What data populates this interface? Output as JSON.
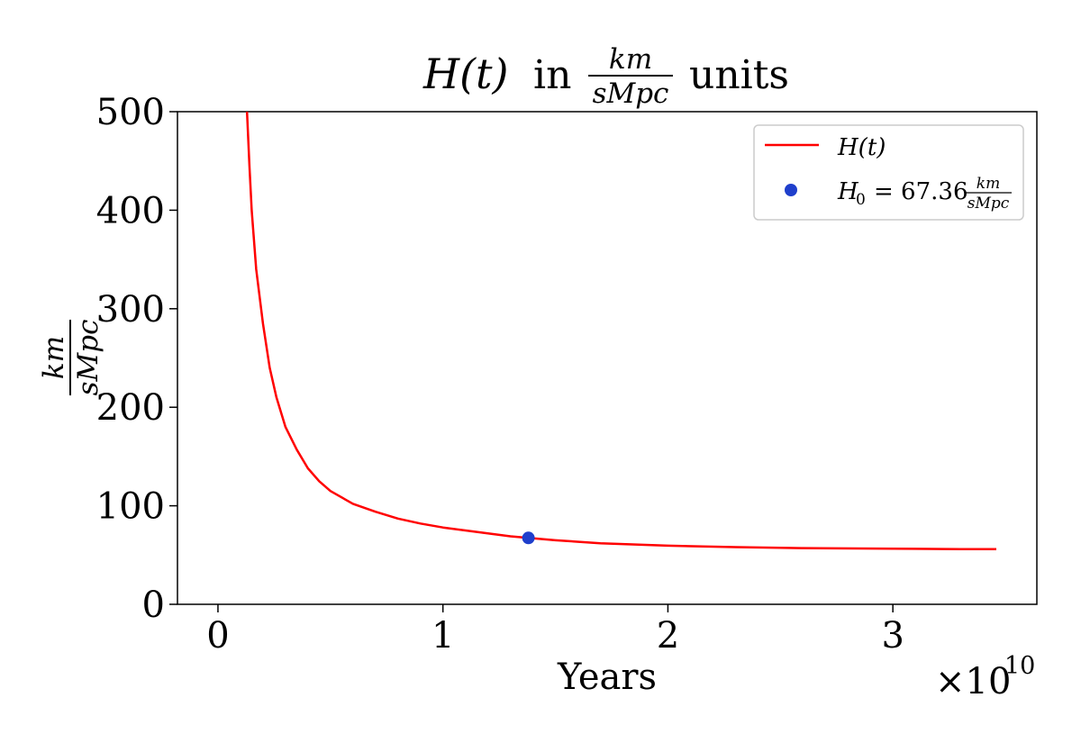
{
  "chart_data": {
    "type": "line",
    "title": {
      "prefix": "H(t)",
      "middle": "in",
      "frac_num": "km",
      "frac_den": "sMpc",
      "suffix": "units"
    },
    "xlabel": "Years",
    "x_multiplier": "×10",
    "x_multiplier_exp": "10",
    "ylabel": {
      "num": "km",
      "den": "sMpc"
    },
    "xlim": [
      -0.18,
      3.64
    ],
    "ylim": [
      0,
      500
    ],
    "x_ticks": [
      0,
      1,
      2,
      3
    ],
    "x_tick_labels": [
      "0",
      "1",
      "2",
      "3"
    ],
    "y_ticks": [
      0,
      100,
      200,
      300,
      400,
      500
    ],
    "y_tick_labels": [
      "0",
      "100",
      "200",
      "300",
      "400",
      "500"
    ],
    "grid": false,
    "legend_position": "top-right",
    "series": [
      {
        "name": "H(t)",
        "kind": "line",
        "color": "#ff0000",
        "x": [
          0.129,
          0.14,
          0.15,
          0.17,
          0.2,
          0.23,
          0.26,
          0.3,
          0.35,
          0.4,
          0.45,
          0.5,
          0.6,
          0.7,
          0.8,
          0.9,
          1.0,
          1.1,
          1.2,
          1.3,
          1.38,
          1.5,
          1.7,
          2.0,
          2.3,
          2.6,
          3.0,
          3.3,
          3.46
        ],
        "y": [
          500,
          445,
          400,
          340,
          285,
          240,
          210,
          180,
          157,
          138,
          125,
          115,
          102,
          94,
          87,
          82,
          78,
          75,
          72,
          69,
          67.4,
          65,
          62,
          59.5,
          58,
          57,
          56.5,
          56,
          56
        ]
      },
      {
        "name": "H_0 = 67.36 km/sMpc",
        "legend_lhs": "H",
        "legend_sub": "0",
        "legend_mid": "= 67.36",
        "legend_num": "km",
        "legend_den": "sMpc",
        "kind": "point",
        "color": "#1f3fcc",
        "x": [
          1.38
        ],
        "y": [
          67.36
        ]
      }
    ]
  }
}
